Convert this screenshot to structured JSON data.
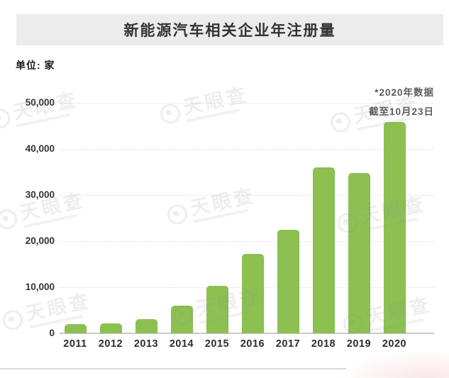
{
  "header": {
    "title": "新能源汽车相关企业年注册量",
    "bg": "#ececec"
  },
  "unit_label": "单位: 家",
  "annotation": {
    "line1": "*2020年数据",
    "line2": "截至10月23日"
  },
  "watermark": {
    "text": "天眼查"
  },
  "colors": {
    "bar": "#8cc152",
    "title_bar_bg": "#ececec",
    "axis_label": "#333333",
    "annotation_text": "#5c5c5c",
    "gridline": "#dcdcdc",
    "baseline": "#c9c9c9"
  },
  "chart_data": {
    "type": "bar",
    "title": "新能源汽车相关企业年注册量",
    "xlabel": "",
    "ylabel": "单位: 家",
    "categories": [
      "2011",
      "2012",
      "2013",
      "2014",
      "2015",
      "2016",
      "2017",
      "2018",
      "2019",
      "2020"
    ],
    "values": [
      2000,
      2200,
      3000,
      6000,
      10300,
      17200,
      22500,
      36000,
      34800,
      45800
    ],
    "ylim": [
      0,
      50000
    ],
    "yticks": [
      0,
      10000,
      20000,
      30000,
      40000,
      50000
    ],
    "ytick_labels": [
      "0",
      "10,000",
      "20,000",
      "30,000",
      "40,000",
      "50,000"
    ],
    "grid": "horizontal-dotted",
    "legend": "none",
    "bar_color": "#8cc152",
    "annotation": "*2020年数据 截至10月23日 (2020 data as of Oct 23)"
  }
}
